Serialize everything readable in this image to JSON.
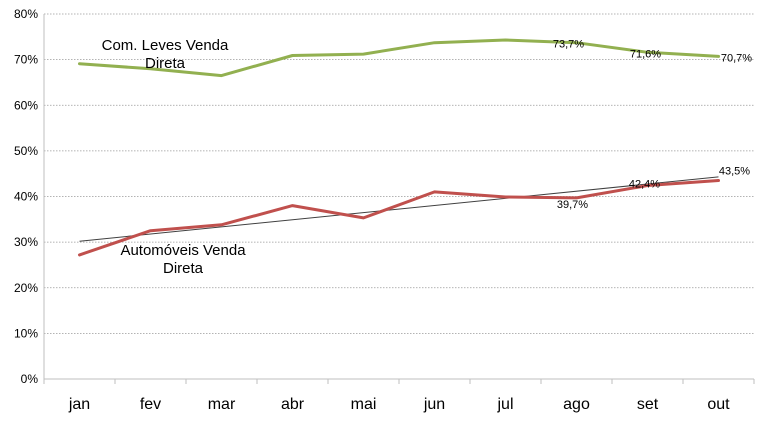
{
  "chart_data": {
    "type": "line",
    "categories": [
      "jan",
      "fev",
      "mar",
      "abr",
      "mai",
      "jun",
      "jul",
      "ago",
      "set",
      "out"
    ],
    "y_ticks": [
      "0%",
      "10%",
      "20%",
      "30%",
      "40%",
      "50%",
      "60%",
      "70%",
      "80%"
    ],
    "ylim": [
      0,
      80
    ],
    "grid": true,
    "series": [
      {
        "name": "Com. Leves Venda Direta",
        "name_lines": [
          "Com. Leves Venda",
          "Direta"
        ],
        "color": "#92B050",
        "values": [
          69.1,
          68.0,
          66.5,
          70.9,
          71.2,
          73.7,
          74.3,
          73.7,
          71.6,
          70.7
        ],
        "labels": [
          {
            "index": 7,
            "text": "73,7%"
          },
          {
            "index": 8,
            "text": "71,6%"
          },
          {
            "index": 9,
            "text": "70,7%"
          }
        ]
      },
      {
        "name": "Automóveis Venda Direta",
        "name_lines": [
          "Automóveis Venda",
          "Direta"
        ],
        "color": "#C0504D",
        "values": [
          27.2,
          32.5,
          33.8,
          38.0,
          35.3,
          41.0,
          39.9,
          39.7,
          42.4,
          43.5
        ],
        "labels": [
          {
            "index": 7,
            "text": "39,7%"
          },
          {
            "index": 8,
            "text": "42,4%"
          },
          {
            "index": 9,
            "text": "43,5%"
          }
        ],
        "trendline": {
          "start": 30.2,
          "end": 44.3,
          "color": "#404040"
        }
      }
    ]
  }
}
